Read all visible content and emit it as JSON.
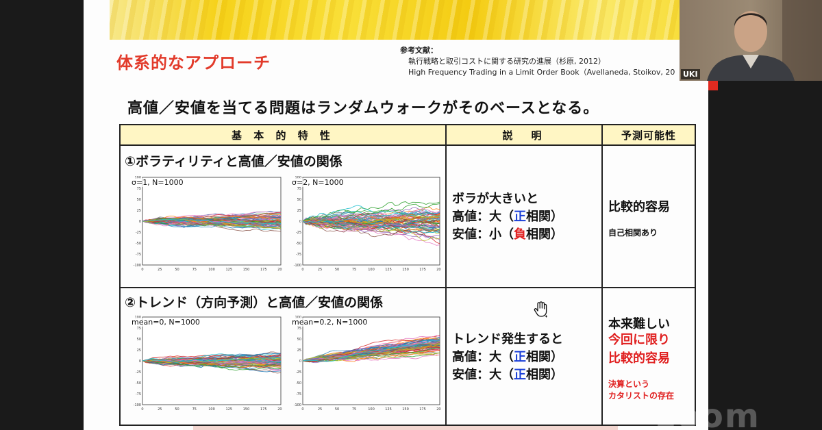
{
  "slide": {
    "title": "体系的なアプローチ",
    "references": {
      "label": "参考文献：",
      "lines": [
        "執行戦略と取引コストに関する研究の進展（杉原, 2012）",
        "High Frequency Trading in a Limit Order Book（Avellaneda, Stoikov, 20"
      ]
    },
    "headline": "高値／安値を当てる問題はランダムウォークがそのベースとなる。",
    "table": {
      "headers": [
        "基 本 的 特 性",
        "説　明",
        "予測可能性"
      ],
      "rows": [
        {
          "title": "①ボラティリティと高値／安値の関係",
          "plots": [
            {
              "label": "σ=1, N=1000",
              "spread": 1.0,
              "drift": 0
            },
            {
              "label": "σ=2, N=1000",
              "spread": 2.0,
              "drift": 0
            }
          ],
          "desc": {
            "line1": "ボラが大きいと",
            "line2_pre": "高値：大（",
            "line2_mark": "正",
            "line2_post": "相関）",
            "line3_pre": "安値：小（",
            "line3_mark": "負",
            "line3_post": "相関）"
          },
          "pred": {
            "main": "比較的容易",
            "small": "自己相関あり"
          }
        },
        {
          "title": "②トレンド（方向予測）と高値／安値の関係",
          "plots": [
            {
              "label": "mean=0, N=1000",
              "spread": 1.0,
              "drift": 0
            },
            {
              "label": "mean=0.2, N=1000",
              "spread": 1.0,
              "drift": 0.2
            }
          ],
          "desc": {
            "line1": "トレンド発生すると",
            "line2_pre": "高値：大（",
            "line2_mark": "正",
            "line2_post": "相関）",
            "line3_pre": "安値：大（",
            "line3_mark": "正",
            "line3_post": "相関）"
          },
          "pred": {
            "main": "本来難しい",
            "red1": "今回に限り",
            "red2": "比較的容易",
            "small1": "決算という",
            "small2": "カタリストの存在"
          }
        }
      ]
    },
    "plot_axes": {
      "y_ticks": [
        "100",
        "75",
        "50",
        "25",
        "0",
        "-25",
        "-50",
        "-75",
        "-100"
      ],
      "x_ticks": [
        "0",
        "25",
        "50",
        "75",
        "100",
        "125",
        "150",
        "175",
        "200"
      ]
    }
  },
  "camera": {
    "name": "UKI"
  },
  "watermark": "zoom",
  "colors": {
    "title_red": "#e23a2a",
    "header_bg": "#fff6c4",
    "accent_blue": "#1a3fd8",
    "accent_red": "#e02020"
  }
}
